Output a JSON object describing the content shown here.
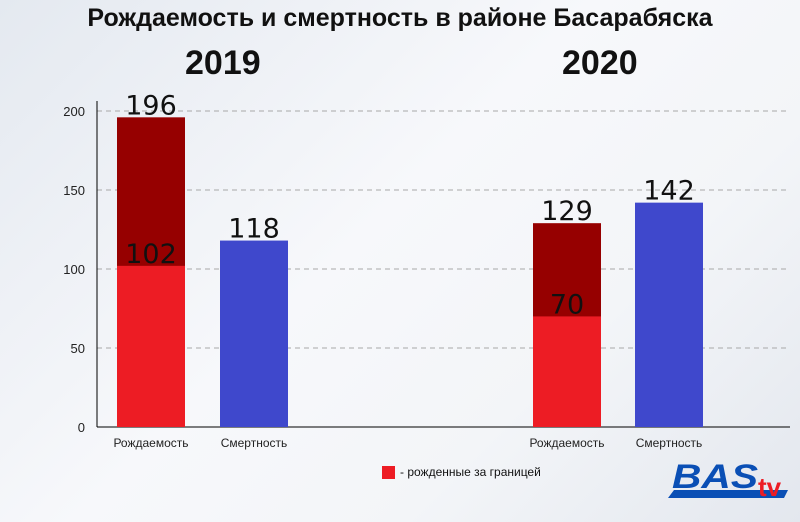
{
  "chart_data": {
    "type": "bar",
    "title": "Рождаемость и смертность в районе Басарабяска",
    "groups": [
      {
        "year": "2019",
        "bars": [
          {
            "category": "Рождаемость",
            "total": 196,
            "abroad": 102
          },
          {
            "category": "Смертность",
            "total": 118
          }
        ]
      },
      {
        "year": "2020",
        "bars": [
          {
            "category": "Рождаемость",
            "total": 129,
            "abroad": 70
          },
          {
            "category": "Смертность",
            "total": 142
          }
        ]
      }
    ],
    "ylim": [
      0,
      200
    ],
    "yticks": [
      "0",
      "50",
      "100",
      "150",
      "200"
    ],
    "grid": true,
    "legend": {
      "label": "- рожденные за границей",
      "placement": "bottom"
    },
    "colors": {
      "births": "#960000",
      "abroad": "#ed1c24",
      "deaths": "#3f48cc"
    }
  },
  "logo": {
    "text1": "BAS",
    "text2": "tv"
  }
}
